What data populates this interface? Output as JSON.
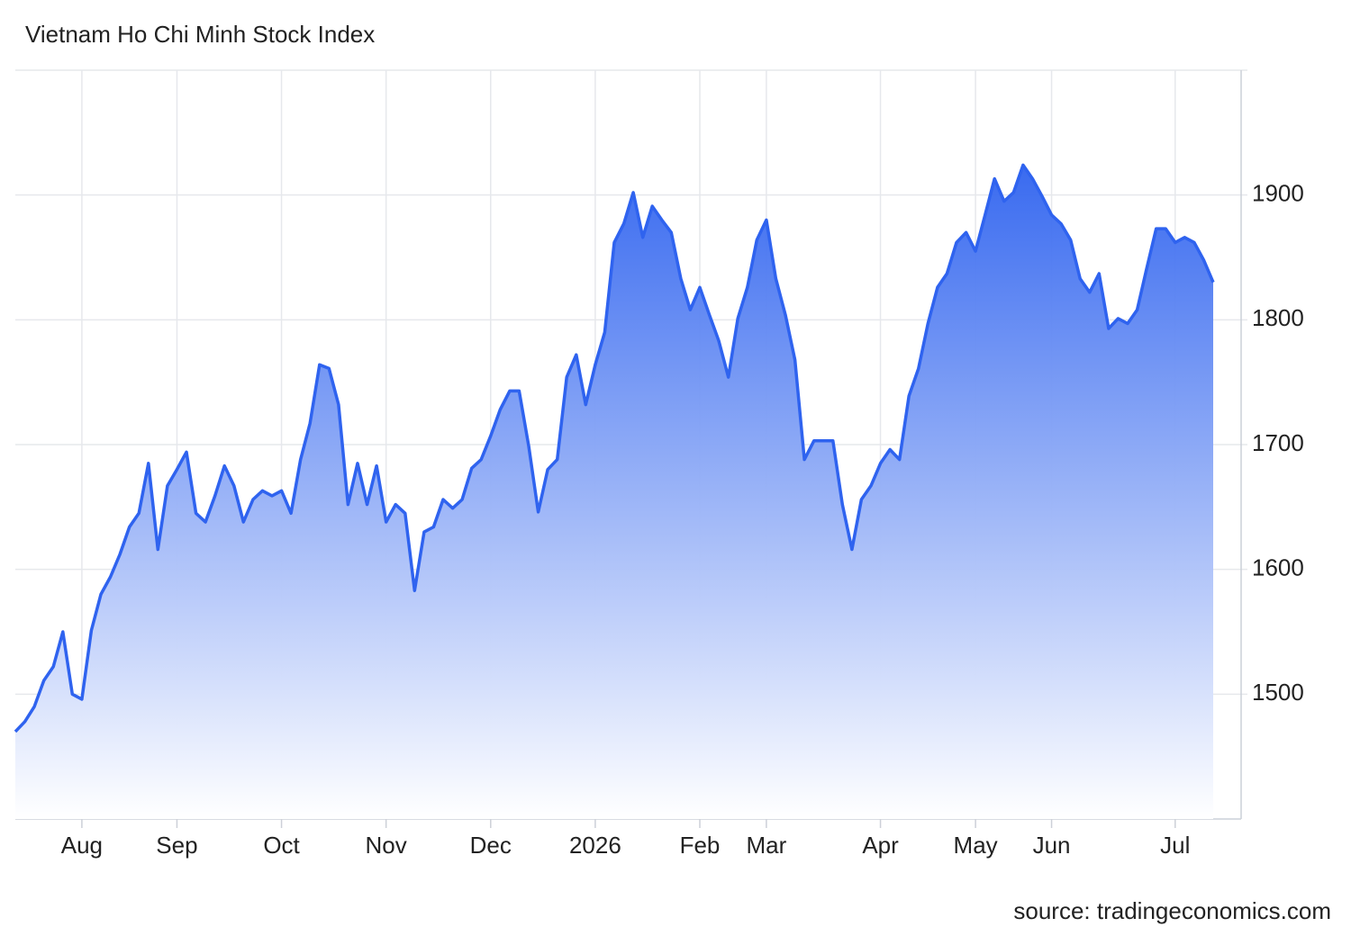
{
  "chart_data": {
    "type": "area",
    "title": "Vietnam Ho Chi Minh Stock Index",
    "source": "source: tradingeconomics.com",
    "color": "#2f63ef",
    "categories": [
      null,
      null,
      null,
      null,
      null,
      null,
      null,
      "Aug",
      null,
      null,
      null,
      null,
      null,
      null,
      null,
      null,
      null,
      "Sep",
      null,
      null,
      null,
      null,
      null,
      null,
      null,
      null,
      null,
      null,
      "Oct",
      null,
      null,
      null,
      null,
      null,
      null,
      null,
      null,
      null,
      null,
      "Nov",
      null,
      null,
      null,
      null,
      null,
      null,
      null,
      null,
      null,
      null,
      "Dec",
      null,
      null,
      null,
      null,
      null,
      null,
      null,
      null,
      null,
      null,
      "2026",
      null,
      null,
      null,
      null,
      null,
      null,
      null,
      null,
      null,
      null,
      "Feb",
      null,
      null,
      null,
      null,
      null,
      null,
      "Mar",
      null,
      null,
      null,
      null,
      null,
      null,
      null,
      null,
      null,
      null,
      null,
      "Apr",
      null,
      null,
      null,
      null,
      null,
      null,
      null,
      null,
      null,
      "May",
      null,
      null,
      null,
      null,
      null,
      null,
      null,
      "Jun",
      null,
      null,
      null,
      null,
      null,
      null,
      null,
      null,
      null,
      null,
      null,
      null,
      "Jul",
      null,
      null,
      null,
      null
    ],
    "values": [
      1470,
      1478,
      1490,
      1511,
      1522,
      1550,
      1500,
      1496,
      1551,
      1580,
      1594,
      1612,
      1634,
      1645,
      1685,
      1616,
      1667,
      1680,
      1694,
      1645,
      1638,
      1659,
      1683,
      1667,
      1638,
      1656,
      1663,
      1659,
      1663,
      1645,
      1688,
      1717,
      1764,
      1761,
      1732,
      1652,
      1685,
      1652,
      1683,
      1638,
      1652,
      1645,
      1583,
      1630,
      1634,
      1656,
      1649,
      1656,
      1681,
      1688,
      1707,
      1728,
      1743,
      1743,
      1699,
      1646,
      1680,
      1688,
      1754,
      1772,
      1732,
      1764,
      1790,
      1862,
      1877,
      1902,
      1866,
      1891,
      1880,
      1870,
      1833,
      1808,
      1826,
      1804,
      1783,
      1754,
      1801,
      1826,
      1864,
      1880,
      1833,
      1804,
      1768,
      1688,
      1703,
      1703,
      1703,
      1652,
      1616,
      1656,
      1667,
      1685,
      1696,
      1688,
      1739,
      1761,
      1797,
      1826,
      1837,
      1862,
      1870,
      1855,
      1884,
      1913,
      1895,
      1902,
      1924,
      1913,
      1899,
      1884,
      1877,
      1864,
      1833,
      1822,
      1837,
      1793,
      1801,
      1797,
      1808,
      1841,
      1873,
      1873,
      1862,
      1866,
      1862,
      1848,
      1830
    ],
    "ylim": [
      1400,
      2000
    ],
    "yticks": [
      1500,
      1600,
      1700,
      1800,
      1900
    ],
    "grid": true
  }
}
